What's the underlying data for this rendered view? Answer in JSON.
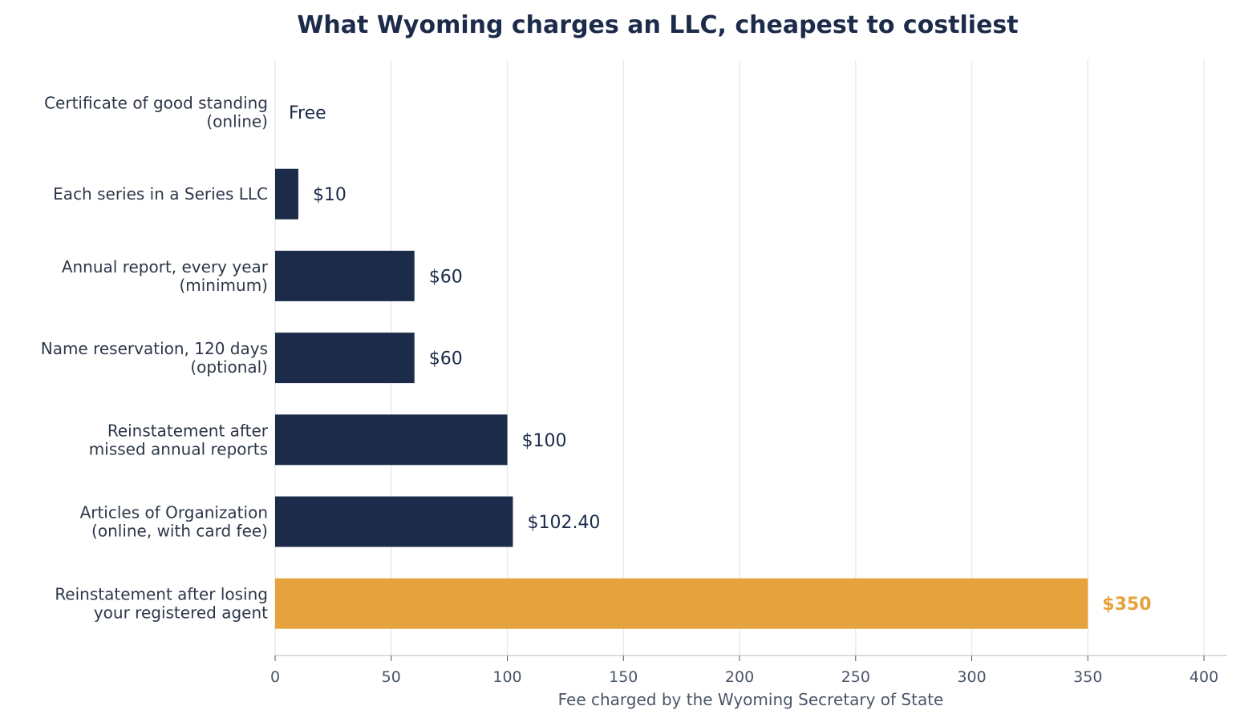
{
  "chart_data": {
    "type": "bar",
    "orientation": "horizontal",
    "title": "What Wyoming charges an LLC, cheapest to costliest",
    "xlabel": "Fee charged by the Wyoming Secretary of State",
    "ylabel": "",
    "xlim": [
      0,
      410
    ],
    "x_ticks": [
      0,
      50,
      100,
      150,
      200,
      250,
      300,
      350,
      400
    ],
    "grid": "vertical",
    "colors": {
      "default": "#1c2b4a",
      "highlight": "#e6a23c"
    },
    "bars": [
      {
        "category": [
          "Certificate of good standing",
          "(online)"
        ],
        "value": 0,
        "label": "Free",
        "highlight": false
      },
      {
        "category": [
          "Each series in a Series LLC"
        ],
        "value": 10,
        "label": "$10",
        "highlight": false
      },
      {
        "category": [
          "Annual report, every year",
          "(minimum)"
        ],
        "value": 60,
        "label": "$60",
        "highlight": false
      },
      {
        "category": [
          "Name reservation, 120 days",
          "(optional)"
        ],
        "value": 60,
        "label": "$60",
        "highlight": false
      },
      {
        "category": [
          "Reinstatement after",
          "missed annual reports"
        ],
        "value": 100,
        "label": "$100",
        "highlight": false
      },
      {
        "category": [
          "Articles of Organization",
          "(online, with card fee)"
        ],
        "value": 102.4,
        "label": "$102.40",
        "highlight": false
      },
      {
        "category": [
          "Reinstatement after losing",
          "your registered agent"
        ],
        "value": 350,
        "label": "$350",
        "highlight": true
      }
    ]
  }
}
